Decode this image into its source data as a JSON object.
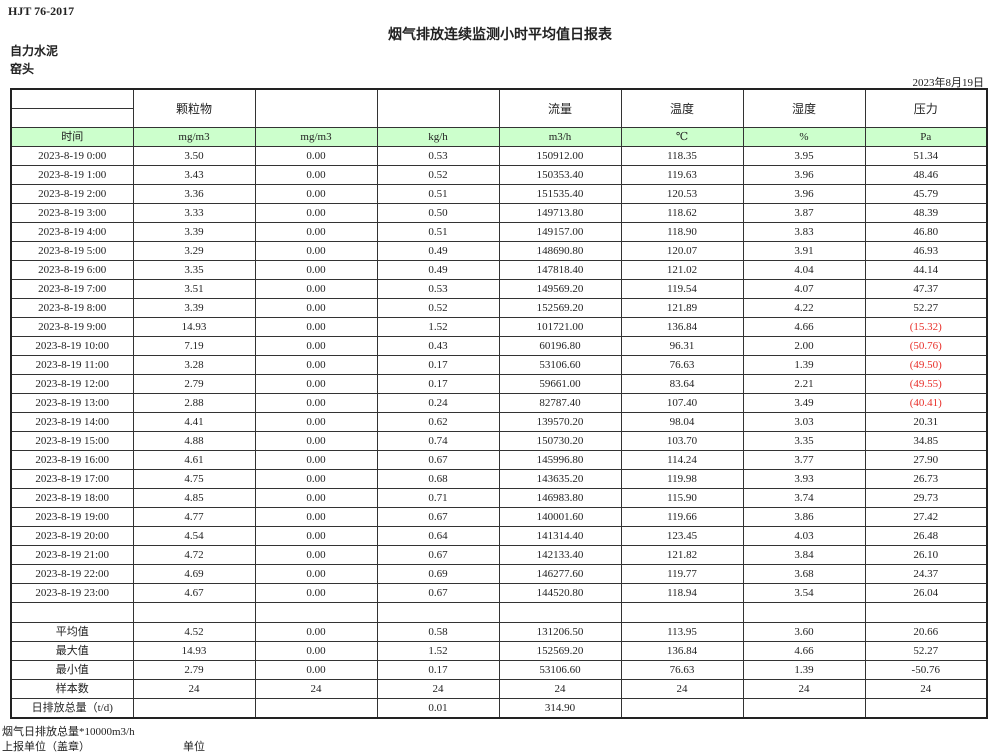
{
  "standard": "HJT  76-2017",
  "title": "烟气排放连续监测小时平均值日报表",
  "company": "自力水泥",
  "unit": "窑头",
  "date": "2023年8月19日",
  "header": {
    "names": [
      "",
      "颗粒物",
      "",
      "",
      "流量",
      "温度",
      "湿度",
      "压力"
    ],
    "units": [
      "时间",
      "mg/m3",
      "mg/m3",
      "kg/h",
      "m3/h",
      "℃",
      "%",
      "Pa"
    ]
  },
  "colors": {
    "unit_row_bg": "#ccffcc",
    "negative": "#e8302a"
  },
  "rows": [
    [
      "2023-8-19 0:00",
      "3.50",
      "0.00",
      "0.53",
      "150912.00",
      "118.35",
      "3.95",
      "51.34"
    ],
    [
      "2023-8-19 1:00",
      "3.43",
      "0.00",
      "0.52",
      "150353.40",
      "119.63",
      "3.96",
      "48.46"
    ],
    [
      "2023-8-19 2:00",
      "3.36",
      "0.00",
      "0.51",
      "151535.40",
      "120.53",
      "3.96",
      "45.79"
    ],
    [
      "2023-8-19 3:00",
      "3.33",
      "0.00",
      "0.50",
      "149713.80",
      "118.62",
      "3.87",
      "48.39"
    ],
    [
      "2023-8-19 4:00",
      "3.39",
      "0.00",
      "0.51",
      "149157.00",
      "118.90",
      "3.83",
      "46.80"
    ],
    [
      "2023-8-19 5:00",
      "3.29",
      "0.00",
      "0.49",
      "148690.80",
      "120.07",
      "3.91",
      "46.93"
    ],
    [
      "2023-8-19 6:00",
      "3.35",
      "0.00",
      "0.49",
      "147818.40",
      "121.02",
      "4.04",
      "44.14"
    ],
    [
      "2023-8-19 7:00",
      "3.51",
      "0.00",
      "0.53",
      "149569.20",
      "119.54",
      "4.07",
      "47.37"
    ],
    [
      "2023-8-19 8:00",
      "3.39",
      "0.00",
      "0.52",
      "152569.20",
      "121.89",
      "4.22",
      "52.27"
    ],
    [
      "2023-8-19 9:00",
      "14.93",
      "0.00",
      "1.52",
      "101721.00",
      "136.84",
      "4.66",
      "(15.32)"
    ],
    [
      "2023-8-19 10:00",
      "7.19",
      "0.00",
      "0.43",
      "60196.80",
      "96.31",
      "2.00",
      "(50.76)"
    ],
    [
      "2023-8-19 11:00",
      "3.28",
      "0.00",
      "0.17",
      "53106.60",
      "76.63",
      "1.39",
      "(49.50)"
    ],
    [
      "2023-8-19 12:00",
      "2.79",
      "0.00",
      "0.17",
      "59661.00",
      "83.64",
      "2.21",
      "(49.55)"
    ],
    [
      "2023-8-19 13:00",
      "2.88",
      "0.00",
      "0.24",
      "82787.40",
      "107.40",
      "3.49",
      "(40.41)"
    ],
    [
      "2023-8-19 14:00",
      "4.41",
      "0.00",
      "0.62",
      "139570.20",
      "98.04",
      "3.03",
      "20.31"
    ],
    [
      "2023-8-19 15:00",
      "4.88",
      "0.00",
      "0.74",
      "150730.20",
      "103.70",
      "3.35",
      "34.85"
    ],
    [
      "2023-8-19 16:00",
      "4.61",
      "0.00",
      "0.67",
      "145996.80",
      "114.24",
      "3.77",
      "27.90"
    ],
    [
      "2023-8-19 17:00",
      "4.75",
      "0.00",
      "0.68",
      "143635.20",
      "119.98",
      "3.93",
      "26.73"
    ],
    [
      "2023-8-19 18:00",
      "4.85",
      "0.00",
      "0.71",
      "146983.80",
      "115.90",
      "3.74",
      "29.73"
    ],
    [
      "2023-8-19 19:00",
      "4.77",
      "0.00",
      "0.67",
      "140001.60",
      "119.66",
      "3.86",
      "27.42"
    ],
    [
      "2023-8-19 20:00",
      "4.54",
      "0.00",
      "0.64",
      "141314.40",
      "123.45",
      "4.03",
      "26.48"
    ],
    [
      "2023-8-19 21:00",
      "4.72",
      "0.00",
      "0.67",
      "142133.40",
      "121.82",
      "3.84",
      "26.10"
    ],
    [
      "2023-8-19 22:00",
      "4.69",
      "0.00",
      "0.69",
      "146277.60",
      "119.77",
      "3.68",
      "24.37"
    ],
    [
      "2023-8-19 23:00",
      "4.67",
      "0.00",
      "0.67",
      "144520.80",
      "118.94",
      "3.54",
      "26.04"
    ]
  ],
  "stats": [
    [
      "平均值",
      "4.52",
      "0.00",
      "0.58",
      "131206.50",
      "113.95",
      "3.60",
      "20.66"
    ],
    [
      "最大值",
      "14.93",
      "0.00",
      "1.52",
      "152569.20",
      "136.84",
      "4.66",
      "52.27"
    ],
    [
      "最小值",
      "2.79",
      "0.00",
      "0.17",
      "53106.60",
      "76.63",
      "1.39",
      "-50.76"
    ],
    [
      "样本数",
      "24",
      "24",
      "24",
      "24",
      "24",
      "24",
      "24"
    ],
    [
      "日排放总量（t/d)",
      "",
      "",
      "0.01",
      "314.90",
      "",
      "",
      ""
    ]
  ],
  "footer": {
    "note": "烟气日排放总量*10000m3/h",
    "reporter_label": "上报单位（盖章）",
    "unit_label": "单位"
  }
}
